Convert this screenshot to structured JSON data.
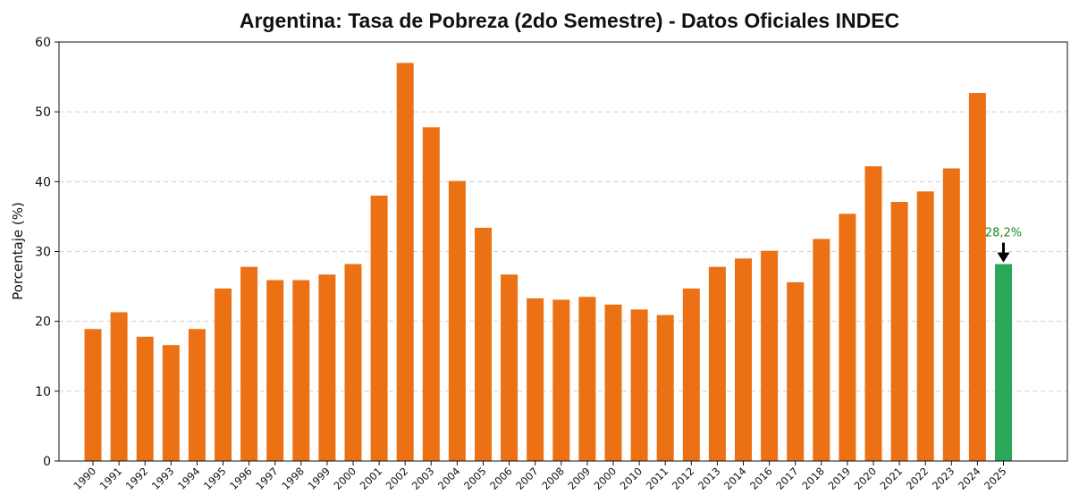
{
  "chart_data": {
    "type": "bar",
    "title": "Argentina: Tasa de Pobreza (2do Semestre) - Datos Oficiales INDEC",
    "xlabel": "",
    "ylabel": "Porcentaje (%)",
    "ylim": [
      0,
      60
    ],
    "yticks": [
      "0",
      "10",
      "20",
      "30",
      "40",
      "50",
      "60"
    ],
    "grid": "horizontal dashed",
    "categories": [
      "1990",
      "1991",
      "1992",
      "1993",
      "1994",
      "1995",
      "1996",
      "1997",
      "1998",
      "1999",
      "2000",
      "2001",
      "2002",
      "2003",
      "2004",
      "2005",
      "2006",
      "2007",
      "2008",
      "2009",
      "2000",
      "2010",
      "2011",
      "2012",
      "2013",
      "2014",
      "2016",
      "2017",
      "2018",
      "2019",
      "2020",
      "2021",
      "2022",
      "2023",
      "2024",
      "2025"
    ],
    "values": [
      18.9,
      21.3,
      17.8,
      16.6,
      18.9,
      24.7,
      27.8,
      25.9,
      25.9,
      26.7,
      28.2,
      38.0,
      57.0,
      47.8,
      40.1,
      33.4,
      26.7,
      23.3,
      23.1,
      23.5,
      22.4,
      21.7,
      20.9,
      24.7,
      27.8,
      29.0,
      30.1,
      25.6,
      31.8,
      35.4,
      42.2,
      37.1,
      38.6,
      41.9,
      52.7,
      28.2
    ],
    "bar_colors": [
      "#ec7014",
      "#ec7014",
      "#ec7014",
      "#ec7014",
      "#ec7014",
      "#ec7014",
      "#ec7014",
      "#ec7014",
      "#ec7014",
      "#ec7014",
      "#ec7014",
      "#ec7014",
      "#ec7014",
      "#ec7014",
      "#ec7014",
      "#ec7014",
      "#ec7014",
      "#ec7014",
      "#ec7014",
      "#ec7014",
      "#ec7014",
      "#ec7014",
      "#ec7014",
      "#ec7014",
      "#ec7014",
      "#ec7014",
      "#ec7014",
      "#ec7014",
      "#ec7014",
      "#ec7014",
      "#ec7014",
      "#ec7014",
      "#ec7014",
      "#ec7014",
      "#ec7014",
      "#2ca85a"
    ],
    "annotation": {
      "category_index": 35,
      "text": "28,2%",
      "color": "#1a8a1a",
      "arrow_color": "#000000"
    }
  }
}
